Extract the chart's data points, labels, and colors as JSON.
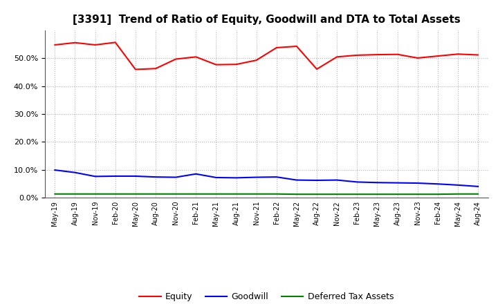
{
  "title": "[3391]  Trend of Ratio of Equity, Goodwill and DTA to Total Assets",
  "x_labels": [
    "May-19",
    "Aug-19",
    "Nov-19",
    "Feb-20",
    "May-20",
    "Aug-20",
    "Nov-20",
    "Feb-21",
    "May-21",
    "Aug-21",
    "Nov-21",
    "Feb-22",
    "May-22",
    "Aug-22",
    "Nov-22",
    "Feb-23",
    "May-23",
    "Aug-23",
    "Nov-23",
    "Feb-24",
    "May-24",
    "Aug-24"
  ],
  "equity": [
    0.548,
    0.556,
    0.548,
    0.557,
    0.46,
    0.463,
    0.497,
    0.505,
    0.477,
    0.478,
    0.493,
    0.538,
    0.543,
    0.461,
    0.505,
    0.511,
    0.513,
    0.514,
    0.501,
    0.508,
    0.515,
    0.512
  ],
  "goodwill": [
    0.099,
    0.09,
    0.076,
    0.077,
    0.077,
    0.074,
    0.073,
    0.085,
    0.072,
    0.071,
    0.073,
    0.074,
    0.063,
    0.062,
    0.063,
    0.056,
    0.054,
    0.053,
    0.052,
    0.049,
    0.045,
    0.04
  ],
  "dta": [
    0.013,
    0.013,
    0.013,
    0.013,
    0.013,
    0.013,
    0.013,
    0.013,
    0.013,
    0.013,
    0.013,
    0.013,
    0.012,
    0.012,
    0.012,
    0.012,
    0.012,
    0.012,
    0.012,
    0.012,
    0.013,
    0.013
  ],
  "equity_color": "#ff0000",
  "goodwill_color": "#0000ff",
  "dta_color": "#008000",
  "ylim": [
    0.0,
    0.6
  ],
  "yticks": [
    0.0,
    0.1,
    0.2,
    0.3,
    0.4,
    0.5
  ],
  "background_color": "#ffffff",
  "grid_color": "#b0b0b0",
  "title_fontsize": 11
}
